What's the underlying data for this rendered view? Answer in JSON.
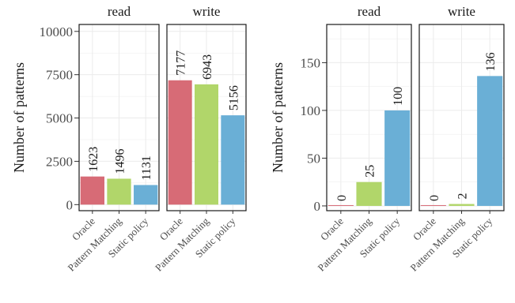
{
  "colors": {
    "Oracle": "#d76b76",
    "Pattern Matching": "#b1d66a",
    "Static policy": "#6aafd6",
    "grid": "#ebebeb",
    "panel_border": "#1a1a1a"
  },
  "chart_data": [
    {
      "type": "bar",
      "ylabel": "Number of patterns",
      "ylim": [
        -350,
        10400
      ],
      "yticks": [
        0,
        2500,
        5000,
        7500,
        10000
      ],
      "grid": true,
      "categories": [
        "Oracle",
        "Pattern Matching",
        "Static policy"
      ],
      "panels": [
        {
          "facet": "read",
          "values": [
            1623,
            1496,
            1131
          ]
        },
        {
          "facet": "write",
          "values": [
            7177,
            6943,
            5156
          ]
        }
      ]
    },
    {
      "type": "bar",
      "ylabel": "Number of patterns",
      "ylim": [
        -5,
        190
      ],
      "yticks": [
        0,
        50,
        100,
        150
      ],
      "grid": true,
      "categories": [
        "Oracle",
        "Pattern Matching",
        "Static policy"
      ],
      "panels": [
        {
          "facet": "read",
          "values": [
            0,
            25,
            100
          ]
        },
        {
          "facet": "write",
          "values": [
            0,
            2,
            136
          ]
        }
      ]
    }
  ]
}
